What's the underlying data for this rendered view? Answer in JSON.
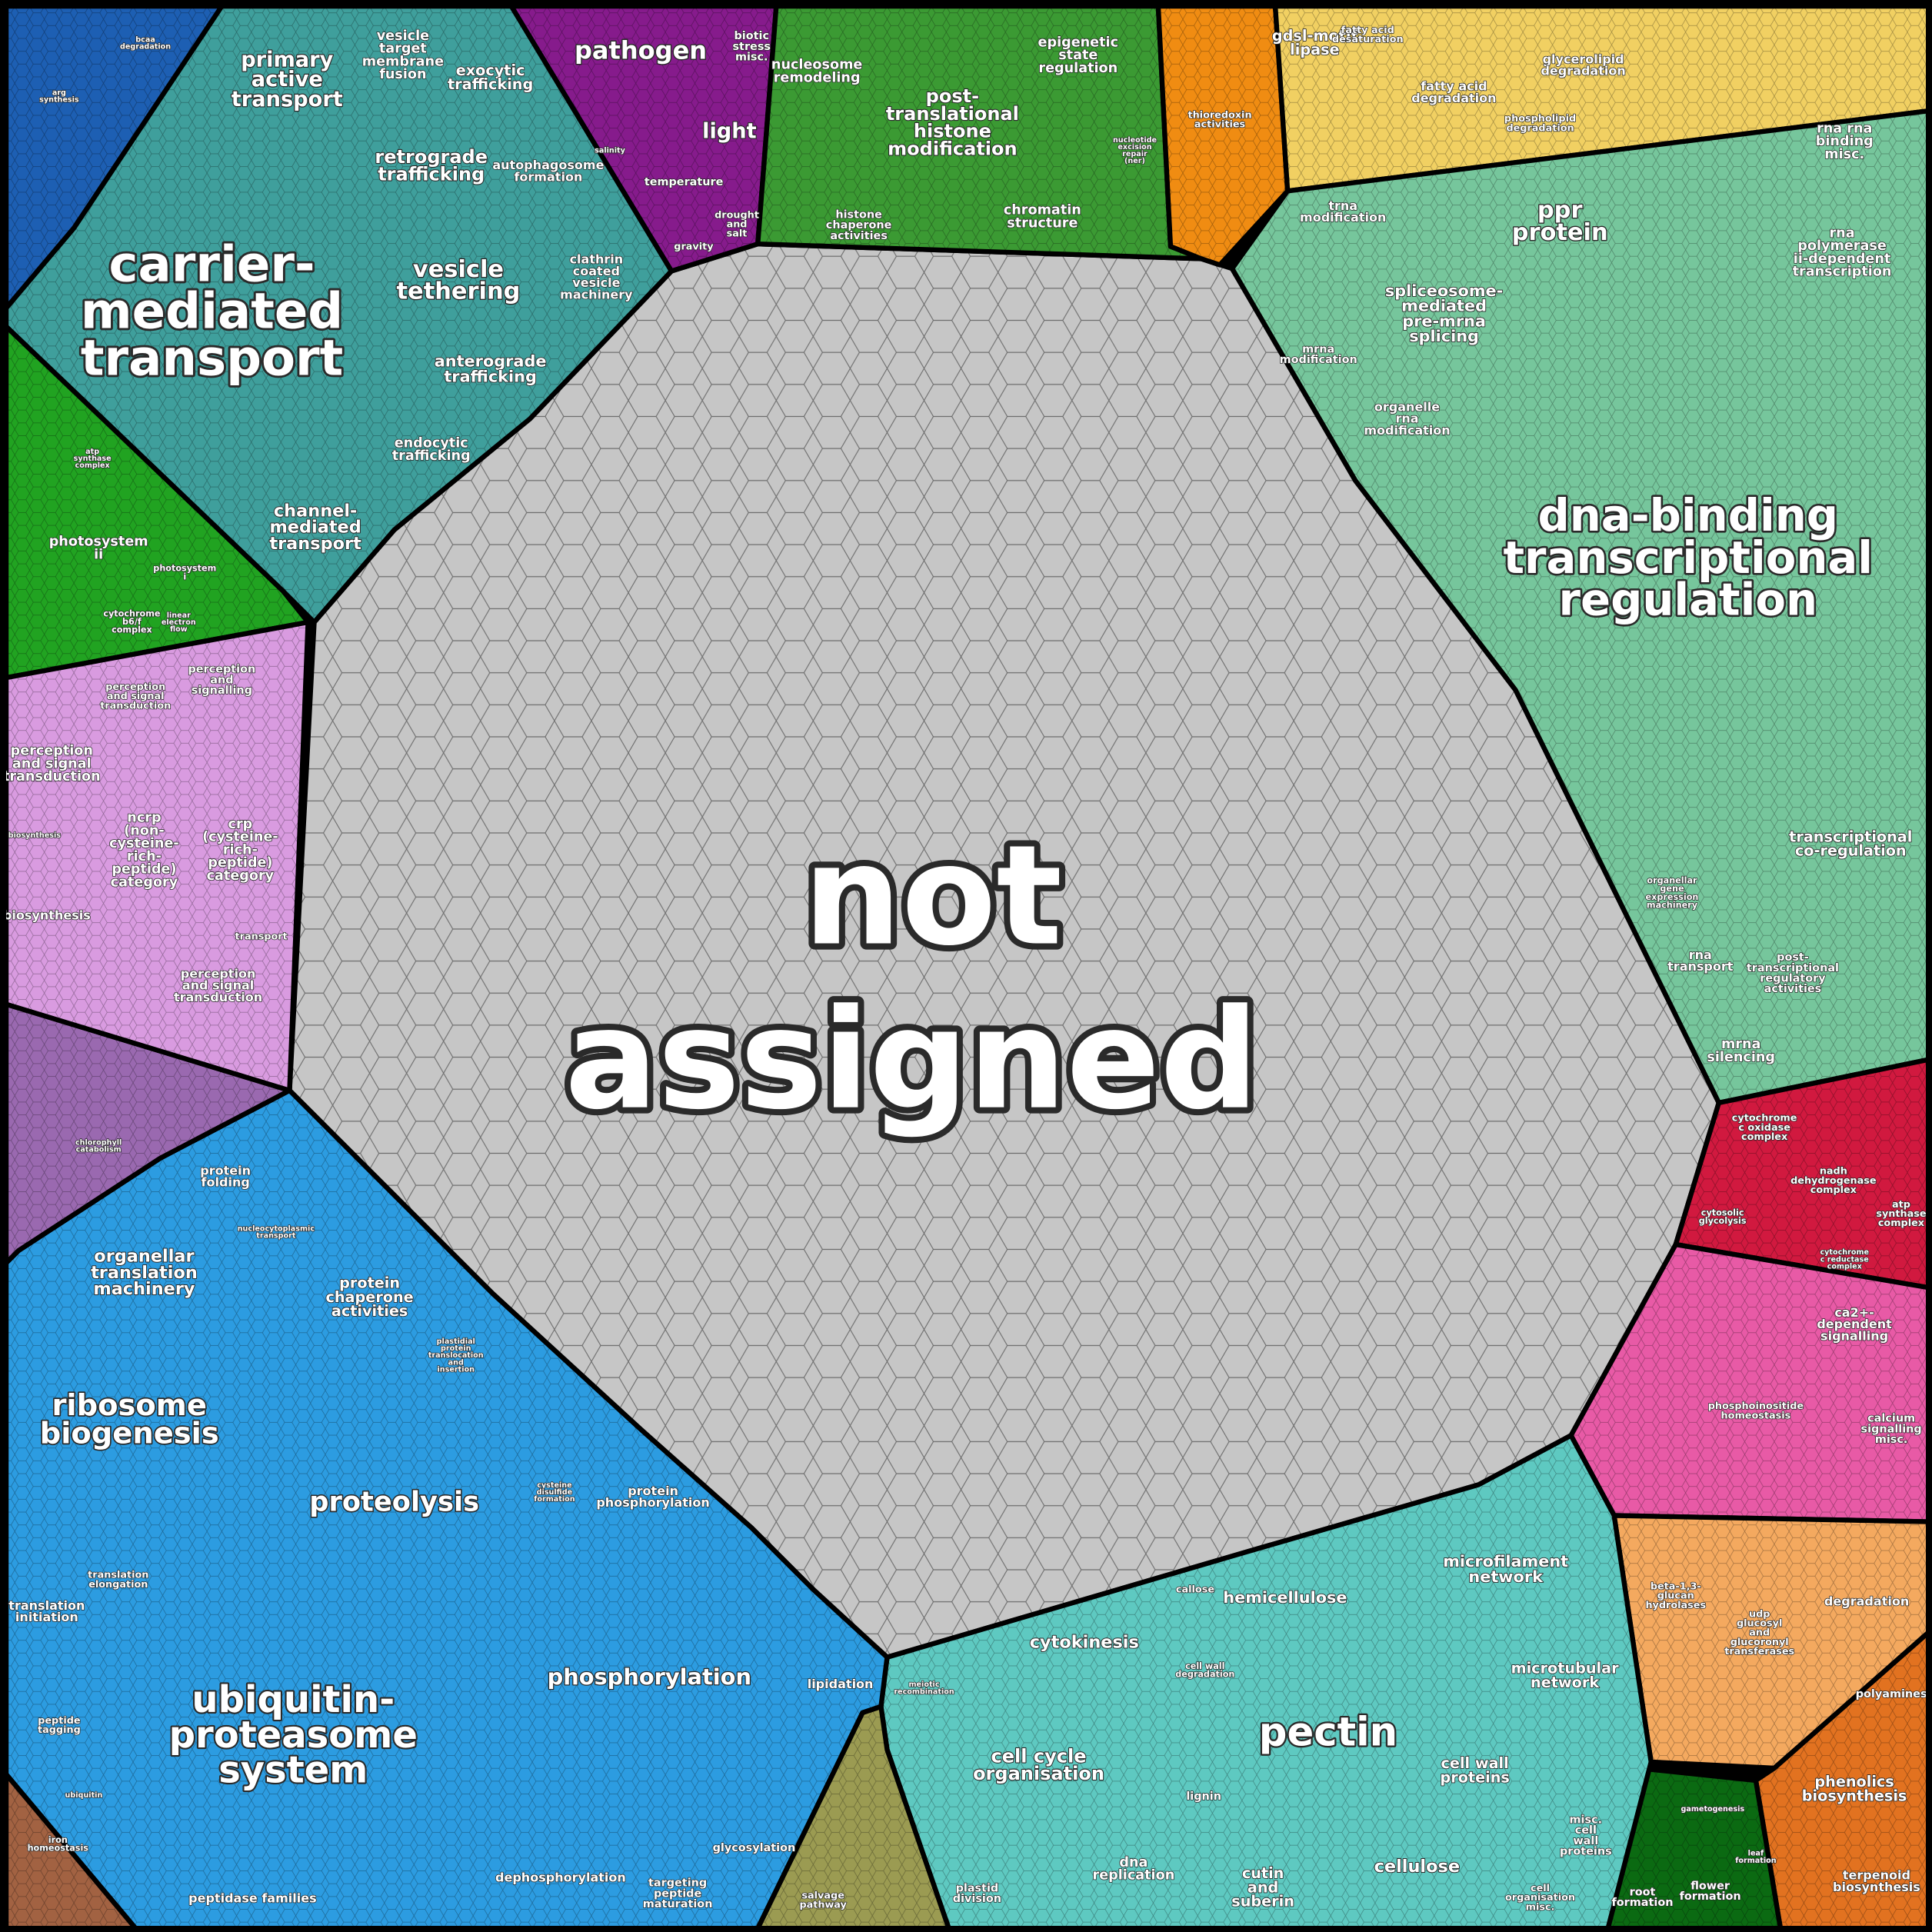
{
  "regions": [
    {
      "labels": [
        "not",
        "assigned"
      ]
    },
    {
      "labels": [
        "carrier-\nmediated\ntransport",
        "primary\nactive\ntransport",
        "vesicle\ntarget\nmembrane\nfusion",
        "exocytic\ntrafficking",
        "retrograde\ntrafficking",
        "autophagosome\nformation",
        "vesicle\ntethering",
        "clathrin\ncoated\nvesicle\nmachinery",
        "anterograde\ntrafficking",
        "endocytic\ntrafficking",
        "channel-\nmediated\ntransport"
      ]
    },
    {
      "labels": [
        "arg\nsynthesis",
        "bcaa\ndegradation"
      ]
    },
    {
      "labels": [
        "photosystem\nii",
        "photosystem\ni",
        "cytochrome\nb6/f\ncomplex",
        "linear\nelectron\nflow",
        "atp\nsynthase\ncomplex"
      ]
    },
    {
      "labels": [
        "pathogen",
        "biotic\nstress\nmisc.",
        "light",
        "temperature",
        "drought\nand\nsalt",
        "gravity",
        "salinity"
      ]
    },
    {
      "labels": [
        "nucleosome\nremodeling",
        "post-\ntranslational\nhistone\nmodification",
        "epigenetic\nstate\nregulation",
        "chromatin\nstructure",
        "histone\nchaperone\nactivities",
        "nucleotide\nexcision\nrepair\n(ner)"
      ]
    },
    {
      "labels": [
        "thioredoxin\nactivities"
      ]
    },
    {
      "labels": [
        "gdsl-motif\nlipase",
        "fatty acid\ndegradation",
        "glycerolipid\ndegradation",
        "phospholipid\ndegradation",
        "fatty acid\ndesaturation"
      ]
    },
    {
      "labels": [
        "dna-binding\ntranscriptional\nregulation",
        "ppr\nprotein",
        "spliceosome-\nmediated\npre-mrna\nsplicing",
        "trna\nmodification",
        "organelle\nrna\nmodification",
        "mrna\nmodification",
        "rna rna\nbinding\nmisc.",
        "rna\npolymerase\nii-dependent\ntranscription",
        "transcriptional\nco-regulation",
        "rna\ntransport",
        "post-\ntranscriptional\nregulatory\nactivities",
        "mrna\nsilencing",
        "organellar\ngene\nexpression\nmachinery"
      ]
    },
    {
      "labels": [
        "cytochrome\nc oxidase\ncomplex",
        "nadh\ndehydrogenase\ncomplex",
        "cytosolic\nglycolysis",
        "atp\nsynthase\ncomplex",
        "cytochrome\nc reductase\ncomplex"
      ]
    },
    {
      "labels": [
        "ca2+-\ndependent\nsignalling",
        "phosphoinositide\nhomeostasis",
        "calcium\nsignalling\nmisc."
      ]
    },
    {
      "labels": [
        "beta-1,3-\nglucan\nhydrolases",
        "udp\nglucosyl\nand\nglucoronyl\ntransferases",
        "degradation",
        "polyamines"
      ]
    },
    {
      "labels": [
        "phenolics\nbiosynthesis",
        "terpenoid\nbiosynthesis"
      ]
    },
    {
      "labels": [
        "root\nformation",
        "flower\nformation",
        "gametogenesis",
        "leaf\nformation"
      ]
    },
    {
      "labels": [
        "pectin",
        "hemicellulose",
        "microfilament\nnetwork",
        "microtubular\nnetwork",
        "cytokinesis",
        "cell cycle\norganisation",
        "cell wall\nproteins",
        "cellulose",
        "cutin\nand\nsuberin",
        "dna\nreplication",
        "plastid\ndivision",
        "lignin",
        "callose",
        "cell wall\ndegradation",
        "misc.\ncell\nwall\nproteins",
        "cell\norganisation\nmisc.",
        "meiotic\nrecombination"
      ]
    },
    {
      "labels": [
        "salvage\npathway"
      ]
    },
    {
      "labels": [
        "ubiquitin-\nproteasome\nsystem",
        "proteolysis",
        "phosphorylation",
        "ribosome\nbiogenesis",
        "organellar\ntranslation\nmachinery",
        "protein\nchaperone\nactivities",
        "protein\nfolding",
        "nucleocytoplasmic\ntransport",
        "protein\nphosphorylation",
        "lipidation",
        "glycosylation",
        "dephosphorylation",
        "targeting\npeptide\nmaturation",
        "peptidase families",
        "translation\ninitiation",
        "translation\nelongation",
        "peptide\ntagging",
        "ubiquitin",
        "plastidial\nprotein\ntranslocation\nand\ninsertion",
        "cysteine\ndisulfide\nformation"
      ]
    },
    {
      "labels": [
        "iron\nhomeostasis"
      ]
    },
    {
      "labels": [
        "chlorophyll\ncatabolism"
      ]
    },
    {
      "labels": [
        "perception\nand signal\ntransduction",
        "ncrp\n(non-\ncysteine-\nrich-\npeptide)\ncategory",
        "crp\n(cysteine-\nrich-\npeptide)\ncategory",
        "perception\nand\nsignalling",
        "perception\nand signal\ntransduction",
        "biosynthesis",
        "transport",
        "perception\nand signal\ntransduction",
        "biosynthesis"
      ]
    }
  ]
}
